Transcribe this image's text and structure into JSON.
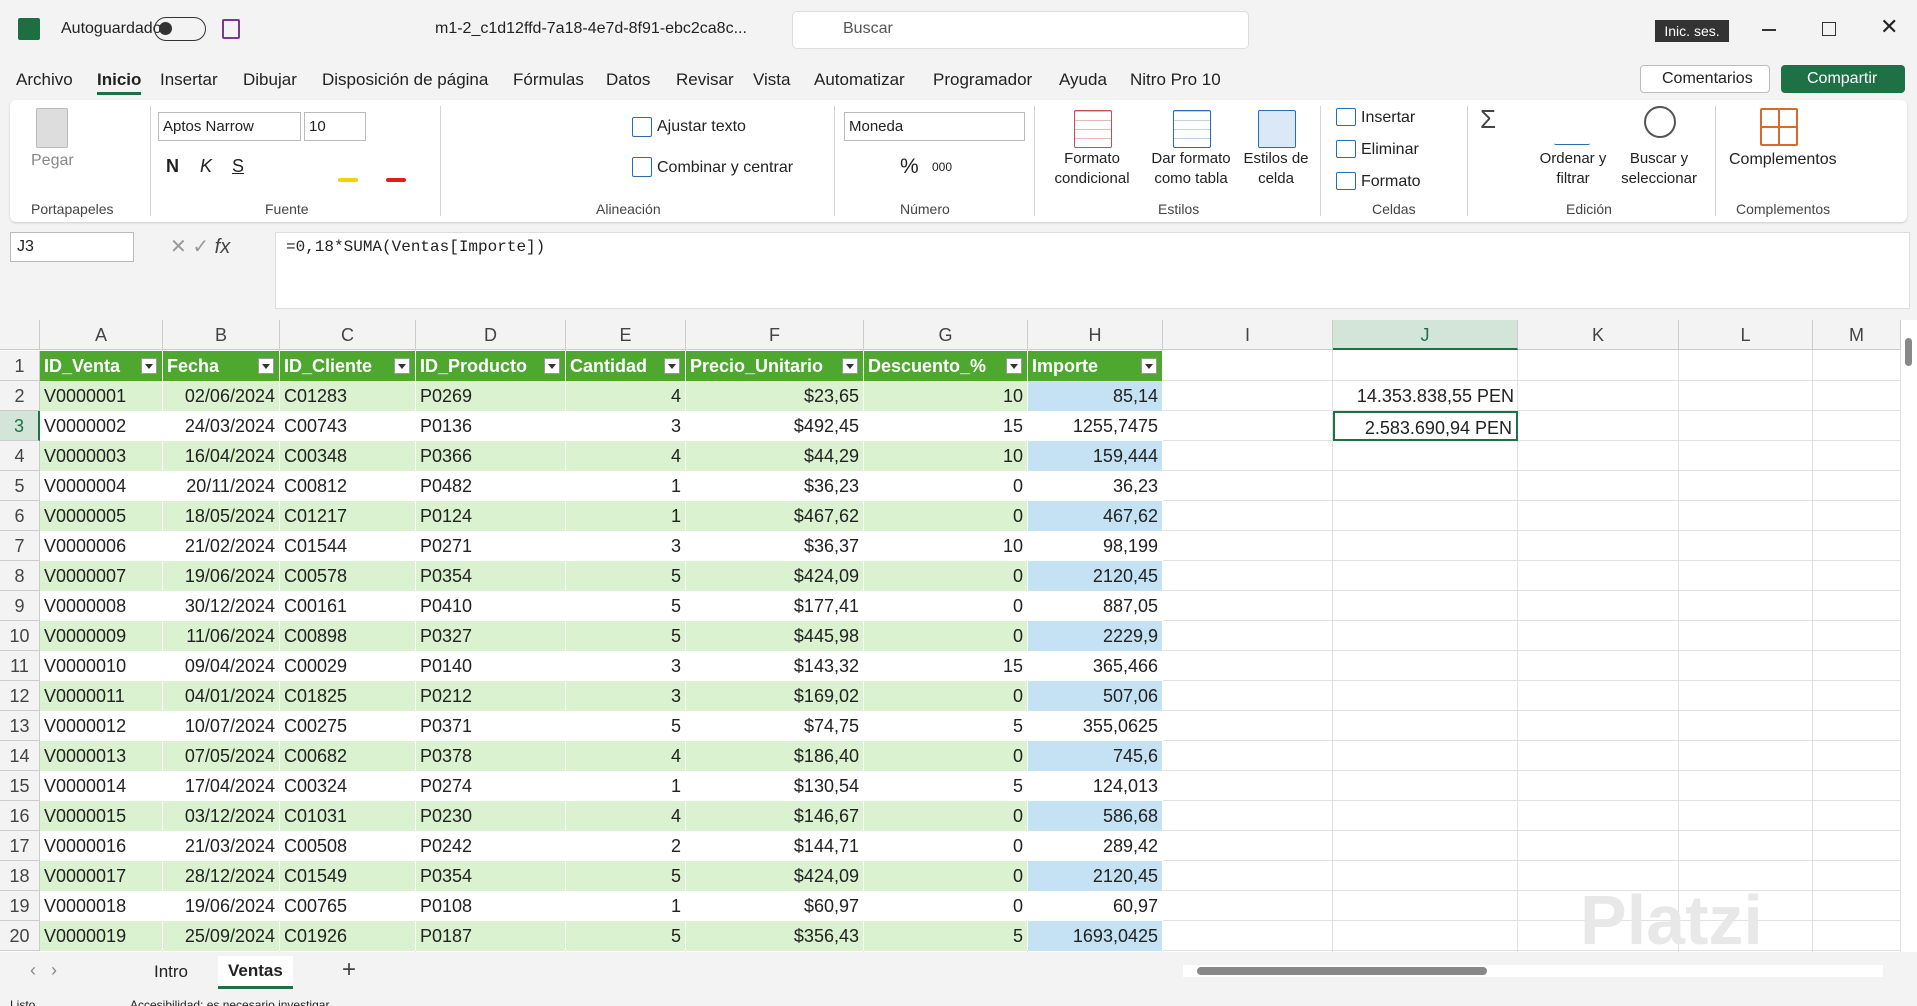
{
  "title_bar": {
    "autosave": "Autoguardado",
    "filename": "m1-2_c1d12ffd-7a18-4e7d-8f91-ebc2ca8c...",
    "search": "Buscar",
    "sign_in": "Inic. ses."
  },
  "menu": {
    "tabs": [
      "Archivo",
      "Inicio",
      "Insertar",
      "Dibujar",
      "Disposición de página",
      "Fórmulas",
      "Datos",
      "Revisar",
      "Vista",
      "Automatizar",
      "Programador",
      "Ayuda",
      "Nitro Pro 10"
    ],
    "comments": "Comentarios",
    "share": "Compartir"
  },
  "ribbon": {
    "clipboard": {
      "paste": "Pegar",
      "group": "Portapapeles"
    },
    "font": {
      "name": "Aptos Narrow",
      "size": "10",
      "bold": "N",
      "italic": "K",
      "underline": "S",
      "group": "Fuente"
    },
    "alignment": {
      "wrap": "Ajustar texto",
      "merge": "Combinar y centrar",
      "group": "Alineación"
    },
    "number": {
      "format": "Moneda",
      "percent": "%",
      "thousands": "000",
      "group": "Número"
    },
    "styles": {
      "conditional": [
        "Formato",
        "condicional"
      ],
      "table": [
        "Dar formato",
        "como tabla"
      ],
      "cell": [
        "Estilos de",
        "celda"
      ],
      "group": "Estilos"
    },
    "cells": {
      "insert": "Insertar",
      "delete": "Eliminar",
      "format": "Formato",
      "group": "Celdas"
    },
    "editing": {
      "sort": [
        "Ordenar y",
        "filtrar"
      ],
      "find": [
        "Buscar y",
        "seleccionar"
      ],
      "group": "Edición"
    },
    "addins": {
      "button": "Complementos",
      "group": "Complementos"
    }
  },
  "formula_bar": {
    "name_box": "J3",
    "formula": "=0,18*SUMA(Ventas[Importe])"
  },
  "sheet": {
    "columns": [
      "A",
      "B",
      "C",
      "D",
      "E",
      "F",
      "G",
      "H",
      "I",
      "J",
      "K",
      "L",
      "M"
    ],
    "row_numbers": [
      "1",
      "2",
      "3",
      "4",
      "5",
      "6",
      "7",
      "8",
      "9",
      "10",
      "11",
      "12",
      "13",
      "14",
      "15",
      "16",
      "17",
      "18",
      "19",
      "20"
    ],
    "table": {
      "headers": [
        "ID_Venta",
        "Fecha",
        "ID_Cliente",
        "ID_Producto",
        "Cantidad",
        "Precio_Unitario",
        "Descuento_%",
        "Importe"
      ],
      "rows": [
        [
          "V0000001",
          "02/06/2024",
          "C01283",
          "P0269",
          "4",
          "$23,65",
          "10",
          "85,14"
        ],
        [
          "V0000002",
          "24/03/2024",
          "C00743",
          "P0136",
          "3",
          "$492,45",
          "15",
          "1255,7475"
        ],
        [
          "V0000003",
          "16/04/2024",
          "C00348",
          "P0366",
          "4",
          "$44,29",
          "10",
          "159,444"
        ],
        [
          "V0000004",
          "20/11/2024",
          "C00812",
          "P0482",
          "1",
          "$36,23",
          "0",
          "36,23"
        ],
        [
          "V0000005",
          "18/05/2024",
          "C01217",
          "P0124",
          "1",
          "$467,62",
          "0",
          "467,62"
        ],
        [
          "V0000006",
          "21/02/2024",
          "C01544",
          "P0271",
          "3",
          "$36,37",
          "10",
          "98,199"
        ],
        [
          "V0000007",
          "19/06/2024",
          "C00578",
          "P0354",
          "5",
          "$424,09",
          "0",
          "2120,45"
        ],
        [
          "V0000008",
          "30/12/2024",
          "C00161",
          "P0410",
          "5",
          "$177,41",
          "0",
          "887,05"
        ],
        [
          "V0000009",
          "11/06/2024",
          "C00898",
          "P0327",
          "5",
          "$445,98",
          "0",
          "2229,9"
        ],
        [
          "V0000010",
          "09/04/2024",
          "C00029",
          "P0140",
          "3",
          "$143,32",
          "15",
          "365,466"
        ],
        [
          "V0000011",
          "04/01/2024",
          "C01825",
          "P0212",
          "3",
          "$169,02",
          "0",
          "507,06"
        ],
        [
          "V0000012",
          "10/07/2024",
          "C00275",
          "P0371",
          "5",
          "$74,75",
          "5",
          "355,0625"
        ],
        [
          "V0000013",
          "07/05/2024",
          "C00682",
          "P0378",
          "4",
          "$186,40",
          "0",
          "745,6"
        ],
        [
          "V0000014",
          "17/04/2024",
          "C00324",
          "P0274",
          "1",
          "$130,54",
          "5",
          "124,013"
        ],
        [
          "V0000015",
          "03/12/2024",
          "C01031",
          "P0230",
          "4",
          "$146,67",
          "0",
          "586,68"
        ],
        [
          "V0000016",
          "21/03/2024",
          "C00508",
          "P0242",
          "2",
          "$144,71",
          "0",
          "289,42"
        ],
        [
          "V0000017",
          "28/12/2024",
          "C01549",
          "P0354",
          "5",
          "$424,09",
          "0",
          "2120,45"
        ],
        [
          "V0000018",
          "19/06/2024",
          "C00765",
          "P0108",
          "1",
          "$60,97",
          "0",
          "60,97"
        ],
        [
          "V0000019",
          "25/09/2024",
          "C01926",
          "P0187",
          "5",
          "$356,43",
          "5",
          "1693,0425"
        ]
      ]
    },
    "cells": {
      "J2": "14.353.838,55 PEN",
      "J3": "2.583.690,94 PEN"
    }
  },
  "sheet_tabs": [
    "Intro",
    "Ventas"
  ],
  "status": {
    "ready": "Listo",
    "accessibility": "Accesibilidad: es necesario investigar"
  },
  "watermark": "Platzi"
}
